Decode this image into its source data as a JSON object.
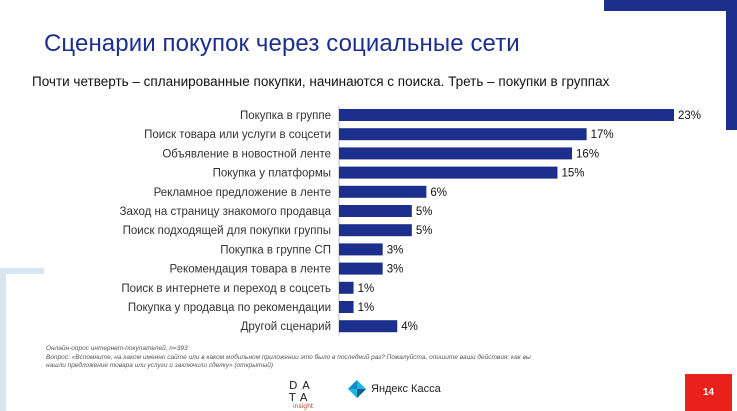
{
  "slide": {
    "title": "Сценарии покупок через социальные сети",
    "subtitle": "Почти четверть – спланированные покупки, начинаются с поиска. Треть – покупки в группах",
    "note_line1": "Онлайн-опрос интернет-покупателей, n=393",
    "note_line2": "Вопрос: «Вспомните, на каком именно сайте или в каком мобильном приложении это было в последний раз? Пожалуйста, опишите ваши действия: как вы",
    "note_line3": "нашли предложение товара или услуги и заключили сделку» (открытый)",
    "logo_data_line1": "DA",
    "logo_data_line2": "TA",
    "logo_data_sub": "insight",
    "logo_kassa_text": "Яндекс Касса",
    "page_number": "14"
  },
  "colors": {
    "bar": "#1d2f8c",
    "title": "#1d2f8c",
    "accent_frame": "#1d2f8c",
    "light_frame": "#d6e7f3",
    "page_badge": "#e8211d"
  },
  "chart_data": {
    "type": "bar",
    "orientation": "horizontal",
    "categories": [
      "Покупка в группе",
      "Поиск товара или услуги в соцсети",
      "Объявление в новостной ленте",
      "Покупка у платформы",
      "Рекламное предложение в ленте",
      "Заход на страницу знакомого продавца",
      "Поиск подходящей для покупки группы",
      "Покупка в группе СП",
      "Рекомендация товара в ленте",
      "Поиск в интернете и переход в соцсеть",
      "Покупка у продавца по рекомендации",
      "Другой сценарий"
    ],
    "values": [
      23,
      17,
      16,
      15,
      6,
      5,
      5,
      3,
      3,
      1,
      1,
      4
    ],
    "value_labels": [
      "23%",
      "17%",
      "16%",
      "15%",
      "6%",
      "5%",
      "5%",
      "3%",
      "3%",
      "1%",
      "1%",
      "4%"
    ],
    "unit": "%",
    "xlim": [
      0,
      23
    ],
    "grid": false,
    "legend": "none"
  }
}
